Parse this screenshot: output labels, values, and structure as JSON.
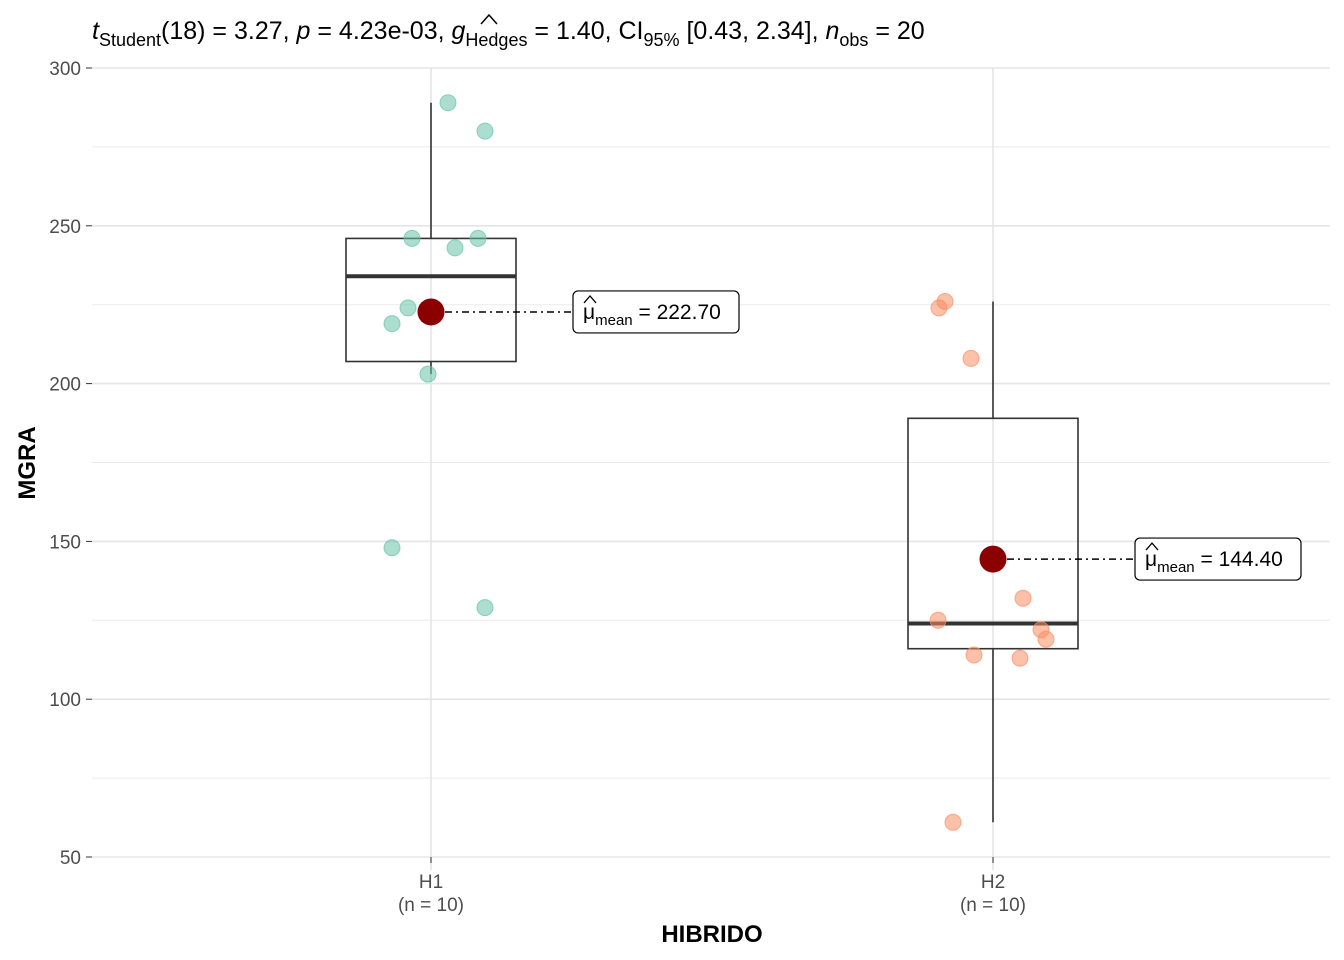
{
  "chart_data": {
    "type": "box",
    "title_parts": {
      "t": "t",
      "t_sub": "Student",
      "t_val": "(18) = 3.27, ",
      "p": "p",
      "p_val": " = 4.23e-03, ",
      "g": "g",
      "g_sub": "Hedges",
      "g_val": " = 1.40, CI",
      "ci_sub": "95%",
      "ci_val": " [0.43, 2.34], ",
      "n": "n",
      "n_sub": "obs",
      "n_val": " = 20"
    },
    "xlabel": "HIBRIDO",
    "ylabel": "MGRA",
    "ylim": [
      45,
      300
    ],
    "yticks": [
      50,
      100,
      150,
      200,
      250,
      300
    ],
    "grid": true,
    "groups": [
      {
        "name": "H1",
        "n_label": "(n = 10)",
        "color": "#66c2a5",
        "points": [
          289,
          280,
          246,
          246,
          243,
          224,
          219,
          203,
          148,
          129
        ],
        "box": {
          "q1": 207,
          "median": 234,
          "q3": 246,
          "whisker_low": 203,
          "whisker_high": 289
        },
        "mean": 222.7,
        "mean_label": "= 222.70"
      },
      {
        "name": "H2",
        "n_label": "(n = 10)",
        "color": "#fc8d62",
        "points": [
          226,
          224,
          208,
          132,
          125,
          122,
          119,
          114,
          113,
          61
        ],
        "box": {
          "q1": 116,
          "median": 124,
          "q3": 189,
          "whisker_low": 61,
          "whisker_high": 226
        },
        "mean": 144.4,
        "mean_label": "= 144.40"
      }
    ],
    "mean_symbol": "μ",
    "mean_sub": "mean",
    "mean_color": "#8b0000"
  }
}
